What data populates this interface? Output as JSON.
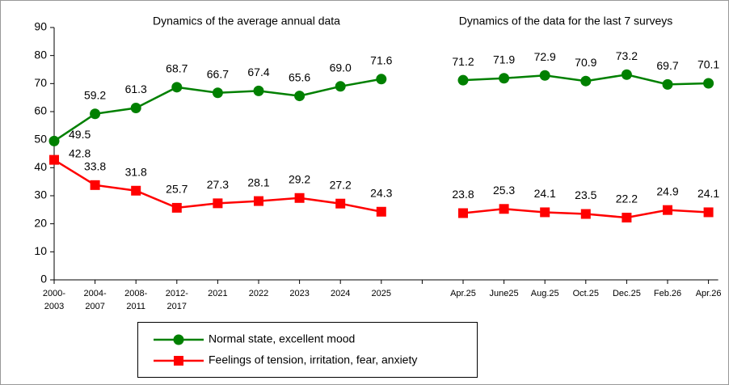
{
  "chart_data": {
    "type": "line",
    "annotations": [
      "Dynamics of the average annual data",
      "Dynamics of the data for the last 7 surveys"
    ],
    "categories": [
      "2000-2003",
      "2004-2007",
      "2008-2011",
      "2012-2017",
      "2021",
      "2022",
      "2023",
      "2024",
      "2025",
      null,
      "Apr.25",
      "June25",
      "Aug.25",
      "Oct.25",
      "Dec.25",
      "Feb.26",
      "Apr.26"
    ],
    "series": [
      {
        "name": "Normal state, excellent mood",
        "color": "#008000",
        "marker": "circle",
        "values": [
          49.5,
          59.2,
          61.3,
          68.7,
          66.7,
          67.4,
          65.6,
          69.0,
          71.6,
          null,
          71.2,
          71.9,
          72.9,
          70.9,
          73.2,
          69.7,
          70.1
        ],
        "value_labels": [
          "49.5",
          "59.2",
          "61.3",
          "68.7",
          "66.7",
          "67.4",
          "65.6",
          "69.0",
          "71.6",
          null,
          "71.2",
          "71.9",
          "72.9",
          "70.9",
          "73.2",
          "69.7",
          "70.1"
        ]
      },
      {
        "name": "Feelings of tension, irritation, fear, anxiety",
        "color": "#ff0000",
        "marker": "square",
        "values": [
          42.8,
          33.8,
          31.8,
          25.7,
          27.3,
          28.1,
          29.2,
          27.2,
          24.3,
          null,
          23.8,
          25.3,
          24.1,
          23.5,
          22.2,
          24.9,
          24.1
        ],
        "value_labels": [
          "42.8",
          "33.8",
          "31.8",
          "25.7",
          "27.3",
          "28.1",
          "29.2",
          "27.2",
          "24.3",
          null,
          "23.8",
          "25.3",
          "24.1",
          "23.5",
          "22.2",
          "24.9",
          "24.1"
        ]
      }
    ],
    "ylim": [
      0,
      90
    ],
    "yticks": [
      0,
      10,
      20,
      30,
      40,
      50,
      60,
      70,
      80,
      90
    ],
    "grid": false,
    "legend": "bottom"
  }
}
